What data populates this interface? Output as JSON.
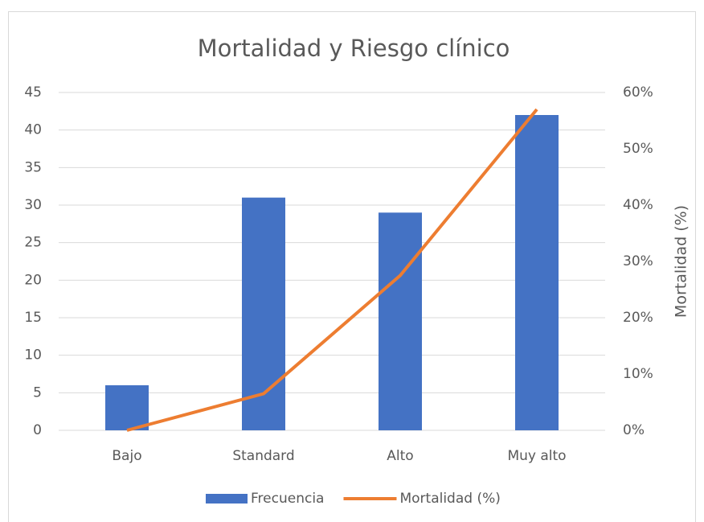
{
  "chart_data": {
    "type": "combo",
    "title": "Mortalidad y Riesgo clínico",
    "categories": [
      "Bajo",
      "Standard",
      "Alto",
      "Muy alto"
    ],
    "series": [
      {
        "name": "Frecuencia",
        "type": "bar",
        "color": "#4472c4",
        "values": [
          6,
          31,
          29,
          42
        ]
      },
      {
        "name": "Mortalidad (%)",
        "type": "line",
        "axis": "y2",
        "color": "#ed7d31",
        "values": [
          0,
          6.5,
          27.5,
          57
        ]
      }
    ],
    "ylim": [
      0,
      45
    ],
    "yticks": [
      0,
      5,
      10,
      15,
      20,
      25,
      30,
      35,
      40,
      45
    ],
    "y2lim": [
      0,
      60
    ],
    "y2label": "Mortalidad (%)",
    "y2ticks": [
      {
        "value": 0,
        "label": "0%"
      },
      {
        "value": 10,
        "label": "10%"
      },
      {
        "value": 20,
        "label": "20%"
      },
      {
        "value": 30,
        "label": "30%"
      },
      {
        "value": 40,
        "label": "40%"
      },
      {
        "value": 50,
        "label": "50%"
      },
      {
        "value": 60,
        "label": "60%"
      }
    ],
    "grid": true,
    "legend": "bottom"
  }
}
